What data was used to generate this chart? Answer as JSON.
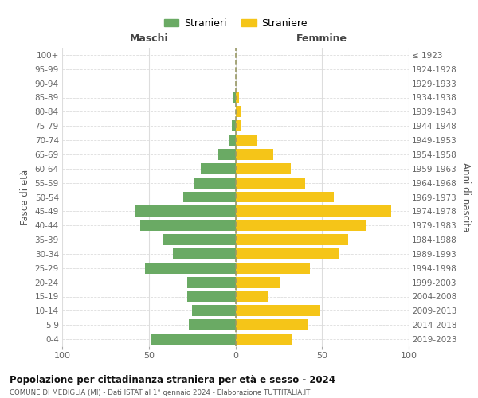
{
  "age_groups": [
    "100+",
    "95-99",
    "90-94",
    "85-89",
    "80-84",
    "75-79",
    "70-74",
    "65-69",
    "60-64",
    "55-59",
    "50-54",
    "45-49",
    "40-44",
    "35-39",
    "30-34",
    "25-29",
    "20-24",
    "15-19",
    "10-14",
    "5-9",
    "0-4"
  ],
  "birth_years": [
    "≤ 1923",
    "1924-1928",
    "1929-1933",
    "1934-1938",
    "1939-1943",
    "1944-1948",
    "1949-1953",
    "1954-1958",
    "1959-1963",
    "1964-1968",
    "1969-1973",
    "1974-1978",
    "1979-1983",
    "1984-1988",
    "1989-1993",
    "1994-1998",
    "1999-2003",
    "2004-2008",
    "2009-2013",
    "2014-2018",
    "2019-2023"
  ],
  "maschi": [
    0,
    0,
    0,
    1,
    0,
    2,
    4,
    10,
    20,
    24,
    30,
    58,
    55,
    42,
    36,
    52,
    28,
    28,
    25,
    27,
    49
  ],
  "femmine": [
    0,
    0,
    0,
    2,
    3,
    3,
    12,
    22,
    32,
    40,
    57,
    90,
    75,
    65,
    60,
    43,
    26,
    19,
    49,
    42,
    33
  ],
  "maschi_color": "#6aaa64",
  "femmine_color": "#f5c518",
  "title": "Popolazione per cittadinanza straniera per età e sesso - 2024",
  "subtitle": "COMUNE DI MEDIGLIA (MI) - Dati ISTAT al 1° gennaio 2024 - Elaborazione TUTTITALIA.IT",
  "xlabel_left": "Maschi",
  "xlabel_right": "Femmine",
  "ylabel_left": "Fasce di età",
  "ylabel_right": "Anni di nascita",
  "xlim": 100,
  "legend_maschi": "Stranieri",
  "legend_femmine": "Straniere",
  "background_color": "#ffffff",
  "grid_color": "#dddddd",
  "centerline_color": "#999966"
}
